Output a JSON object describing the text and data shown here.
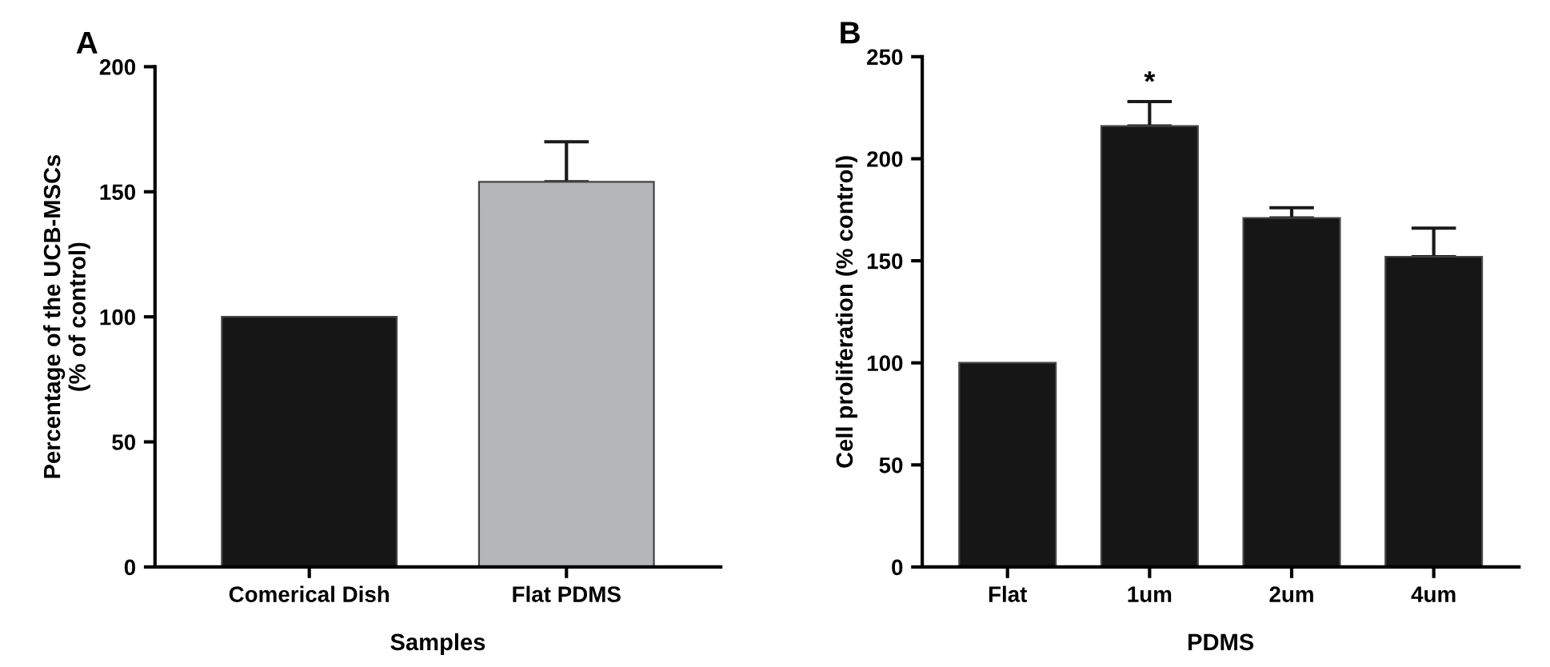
{
  "chart_data": [
    {
      "type": "bar",
      "title": "A",
      "xlabel": "Samples",
      "ylabel": "Percentage of the UCB-MSCs\n(% of control)",
      "categories": [
        "Comerical Dish",
        "Flat PDMS"
      ],
      "values": [
        100,
        154
      ],
      "colors": [
        "#161616",
        "#b5b6b8"
      ],
      "errors": [
        null,
        [
          154,
          170
        ]
      ],
      "ylim": [
        0,
        200
      ],
      "yticks": [
        0,
        50,
        100,
        150,
        200
      ],
      "grid": false,
      "legend": false
    },
    {
      "type": "bar",
      "title": "B",
      "xlabel": "PDMS",
      "ylabel": "Cell proliferation (% control)",
      "categories": [
        "Flat",
        "1um",
        "2um",
        "4um"
      ],
      "values": [
        100,
        216,
        171,
        152
      ],
      "colors": [
        "#161616",
        "#161616",
        "#161616",
        "#161616"
      ],
      "errors": [
        null,
        [
          216,
          228
        ],
        [
          171,
          176
        ],
        [
          152,
          166
        ]
      ],
      "ylim": [
        0,
        250
      ],
      "yticks": [
        0,
        50,
        100,
        150,
        200,
        250
      ],
      "annotations": [
        {
          "text": "*",
          "x": "1um",
          "y": 228
        }
      ],
      "grid": false,
      "legend": false
    }
  ]
}
